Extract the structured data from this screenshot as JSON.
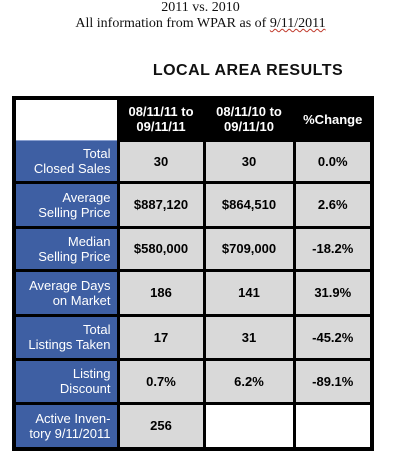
{
  "header": {
    "line1": "2011 vs. 2010",
    "line2_prefix": "All information from WPAR as of ",
    "line2_date": "9/11/2011"
  },
  "table_title": "LOCAL AREA RESULTS",
  "columns": [
    "08/11/11 to 09/11/11",
    "08/11/10 to 09/11/10",
    "%Change"
  ],
  "rows": [
    {
      "label": [
        "Total",
        "Closed Sales"
      ],
      "v2011": "30",
      "v2010": "30",
      "change": "0.0%"
    },
    {
      "label": [
        "Average",
        "Selling Price"
      ],
      "v2011": "$887,120",
      "v2010": "$864,510",
      "change": "2.6%"
    },
    {
      "label": [
        "Median",
        "Selling Price"
      ],
      "v2011": "$580,000",
      "v2010": "$709,000",
      "change": "-18.2%"
    },
    {
      "label": [
        "Average Days",
        "on Market"
      ],
      "v2011": "186",
      "v2010": "141",
      "change": "31.9%"
    },
    {
      "label": [
        "Total",
        "Listings Taken"
      ],
      "v2011": "17",
      "v2010": "31",
      "change": "-45.2%"
    },
    {
      "label": [
        "Listing",
        "Discount"
      ],
      "v2011": "0.7%",
      "v2010": "6.2%",
      "change": "-89.1%"
    },
    {
      "label": [
        "Active Inven-",
        "tory 9/11/2011"
      ],
      "v2011": "256",
      "v2010": "",
      "change": ""
    }
  ]
}
